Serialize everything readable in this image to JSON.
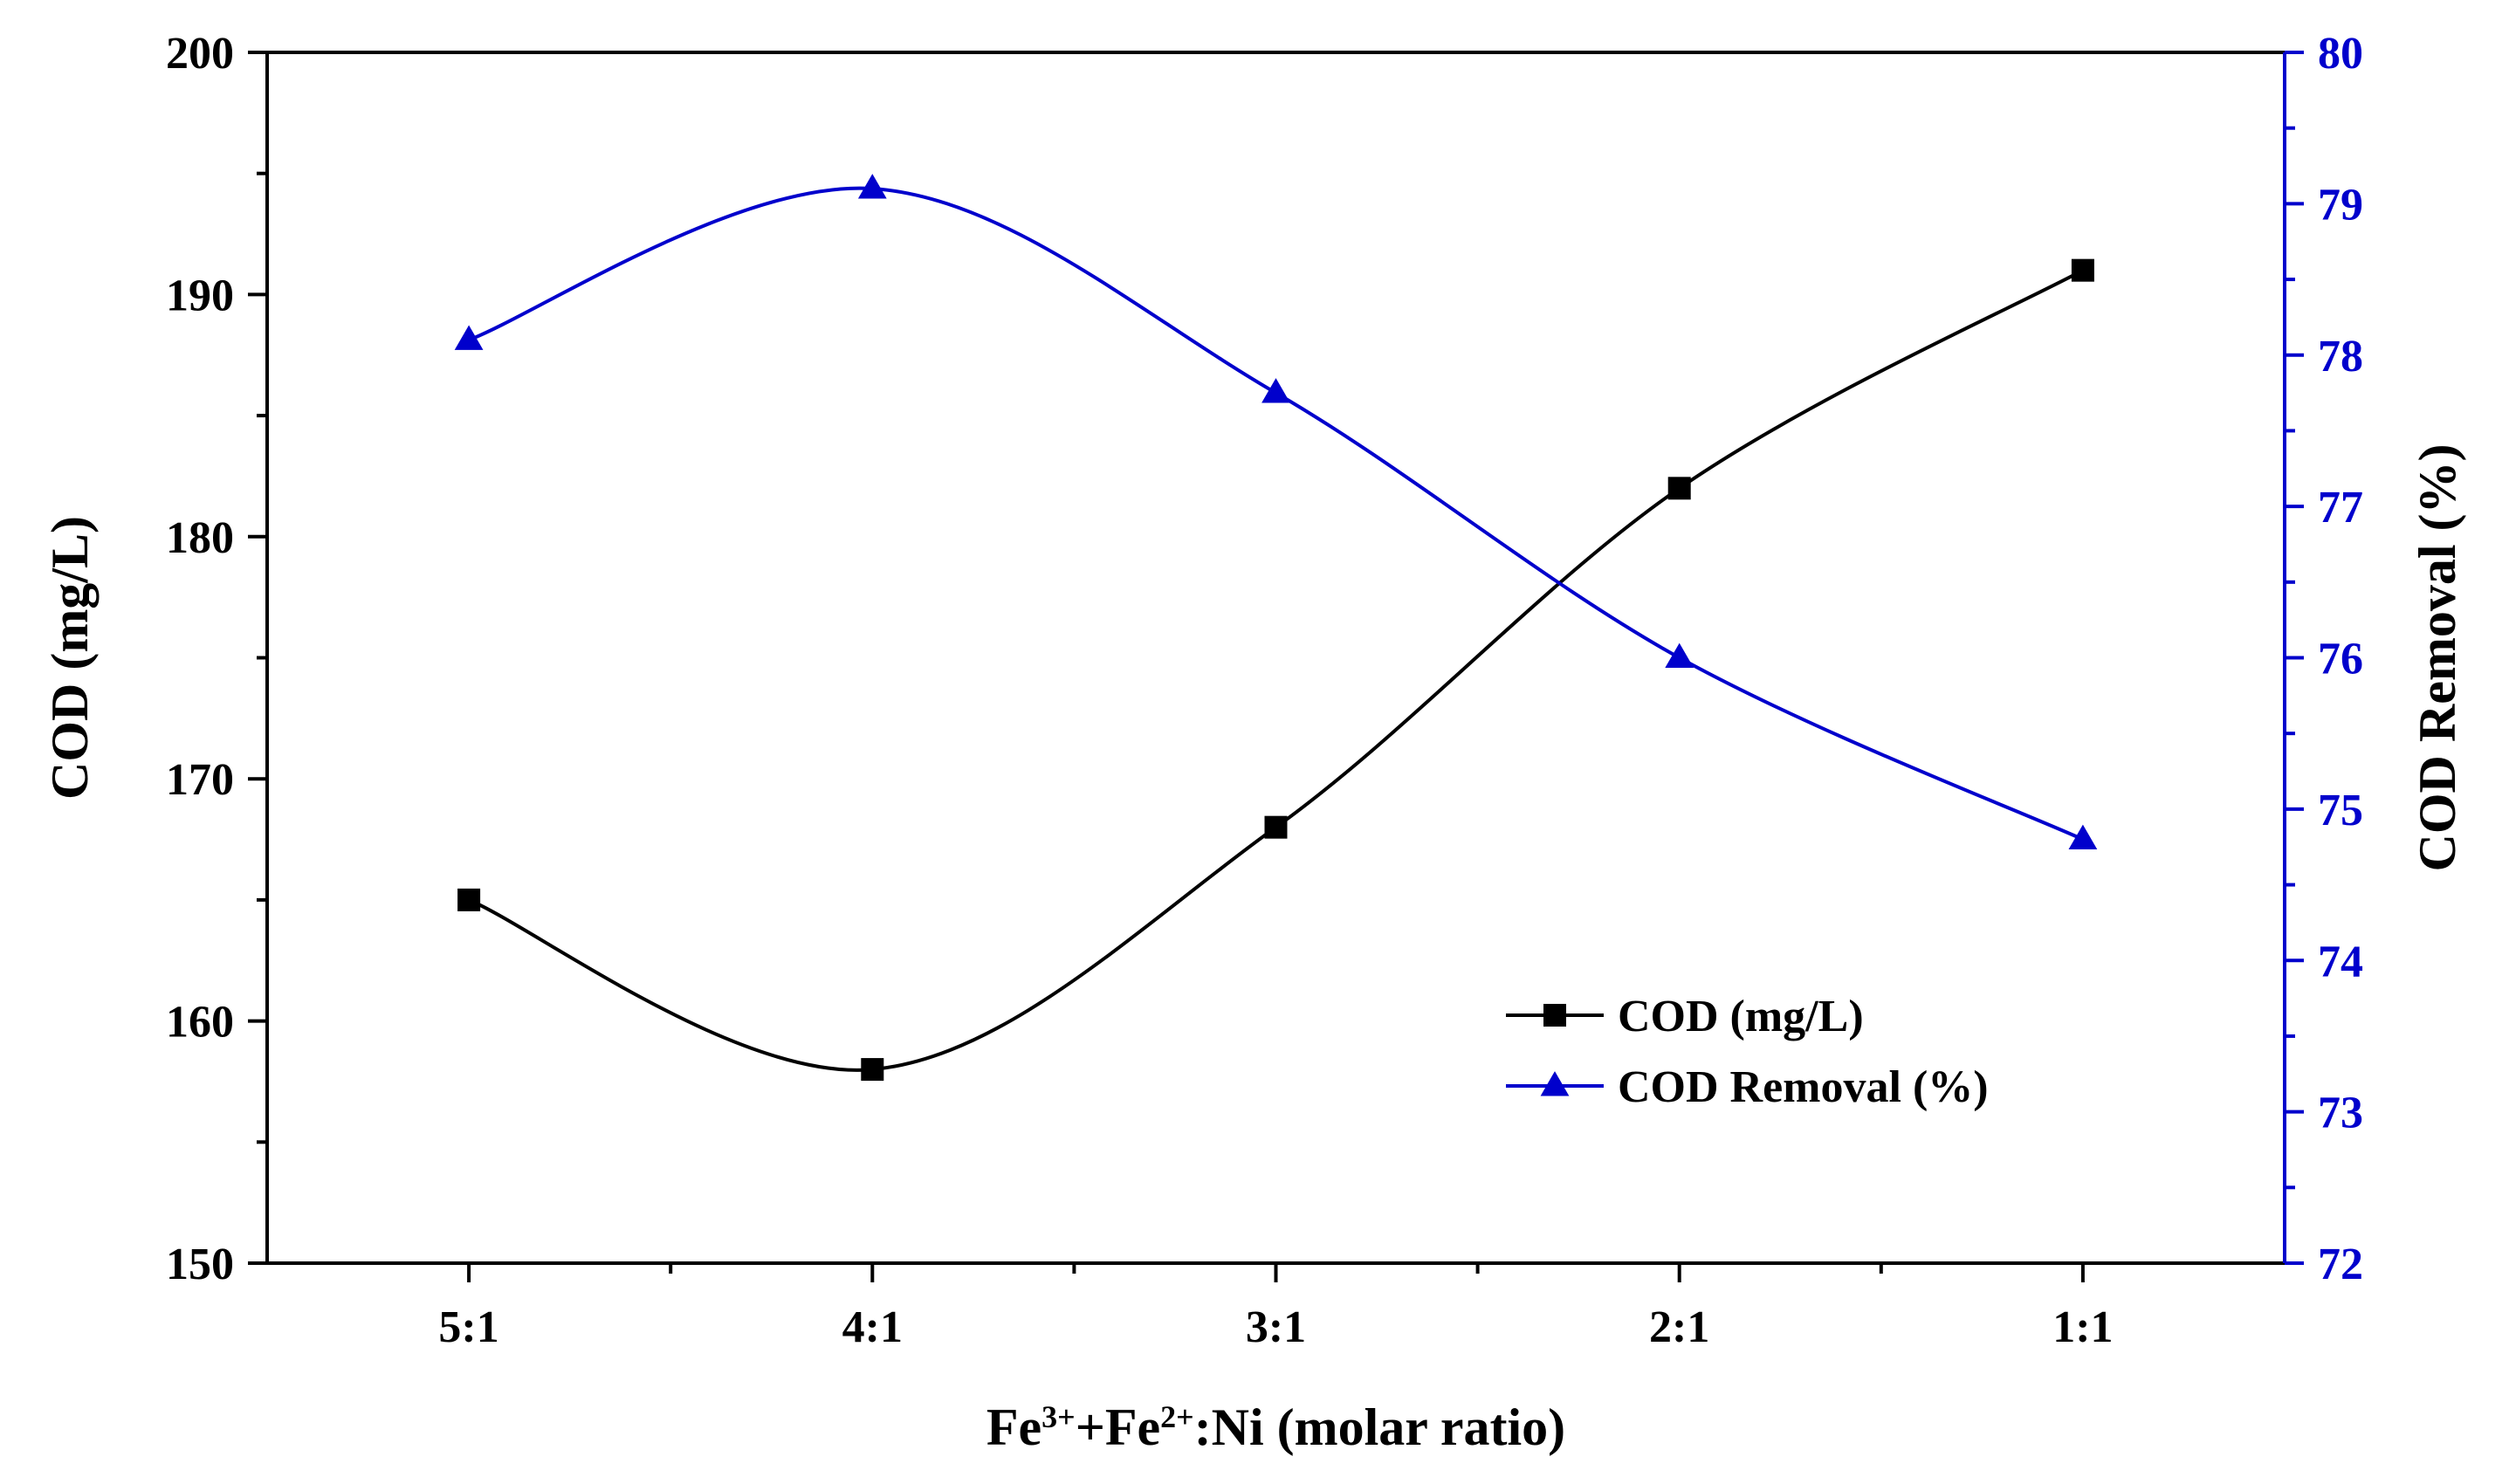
{
  "chart_data": {
    "type": "line",
    "title": "",
    "categories": [
      "5:1",
      "4:1",
      "3:1",
      "2:1",
      "1:1"
    ],
    "xlabel": {
      "base1": "Fe",
      "sup1": "3+",
      "base2": "+Fe",
      "sup2": "2+",
      "rest": ":Ni (molar ratio)"
    },
    "left_axis": {
      "label": "COD (mg/L)",
      "ylim": [
        150,
        200
      ],
      "major_ticks": [
        "150",
        "160",
        "170",
        "180",
        "190",
        "200"
      ],
      "minor_step": 5,
      "color": "#000000"
    },
    "right_axis": {
      "label": "COD Removal (%)",
      "ylim": [
        72,
        80
      ],
      "major_ticks": [
        "72",
        "73",
        "74",
        "75",
        "76",
        "77",
        "78",
        "79",
        "80"
      ],
      "minor_step": 0.5,
      "color": "#0000cc"
    },
    "series": [
      {
        "name": "COD (mg/L)",
        "axis": "left",
        "marker": "square",
        "color": "#000000",
        "values": [
          165,
          158,
          168,
          182,
          191
        ]
      },
      {
        "name": "COD Removal (%)",
        "axis": "right",
        "marker": "triangle",
        "color": "#0000cc",
        "values": [
          78.1,
          79.1,
          77.75,
          76.0,
          74.8
        ]
      }
    ],
    "legend": {
      "placement": "lower-right",
      "entries": [
        "COD (mg/L)",
        "COD Removal (%)"
      ]
    }
  }
}
